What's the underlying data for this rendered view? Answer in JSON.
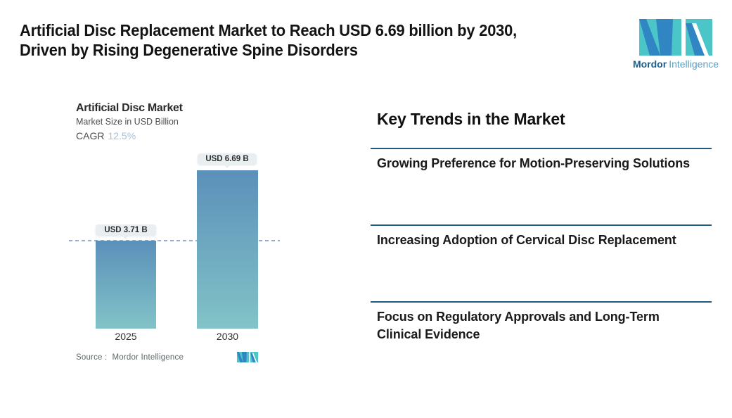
{
  "header": {
    "title_line1": "Artificial Disc Replacement Market to Reach USD 6.69 billion by 2030,",
    "title_line2": "Driven by Rising Degenerative Spine Disorders"
  },
  "brand": {
    "name_bold": "Mordor",
    "name_light": "Intelligence"
  },
  "chart_data": {
    "type": "bar",
    "title": "Artificial Disc Market",
    "subtitle": "Market Size in USD Billion",
    "cagr_label": "CAGR",
    "cagr_value": "12.5%",
    "categories": [
      "2025",
      "2030"
    ],
    "values": [
      3.71,
      6.69
    ],
    "value_labels": [
      "USD 3.71 B",
      "USD 6.69 B"
    ],
    "unit": "USD Billion",
    "ylim": [
      0,
      6.69
    ],
    "reference_value": 3.71,
    "grid": false,
    "legend": false,
    "bar_color_top": "#5b90ba",
    "bar_color_bottom": "#82c3c7",
    "reference_line_color": "#8fb0d4"
  },
  "source": {
    "label": "Source :",
    "value": "Mordor Intelligence"
  },
  "trends": {
    "heading": "Key Trends in the Market",
    "items": [
      "Growing Preference for Motion-Preserving Solutions",
      "Increasing Adoption of Cervical Disc Replacement",
      "Focus on Regulatory Approvals and Long-Term Clinical Evidence"
    ]
  },
  "colors": {
    "brand_teal": "#4cc5c9",
    "brand_blue": "#2f86c3",
    "brand_name_dark": "#1a5f8c",
    "brand_name_light": "#58a0c6",
    "rule_line": "#1e5b7e",
    "pill_bg": "#e9eef1",
    "cagr_value": "#a3c1e0"
  }
}
